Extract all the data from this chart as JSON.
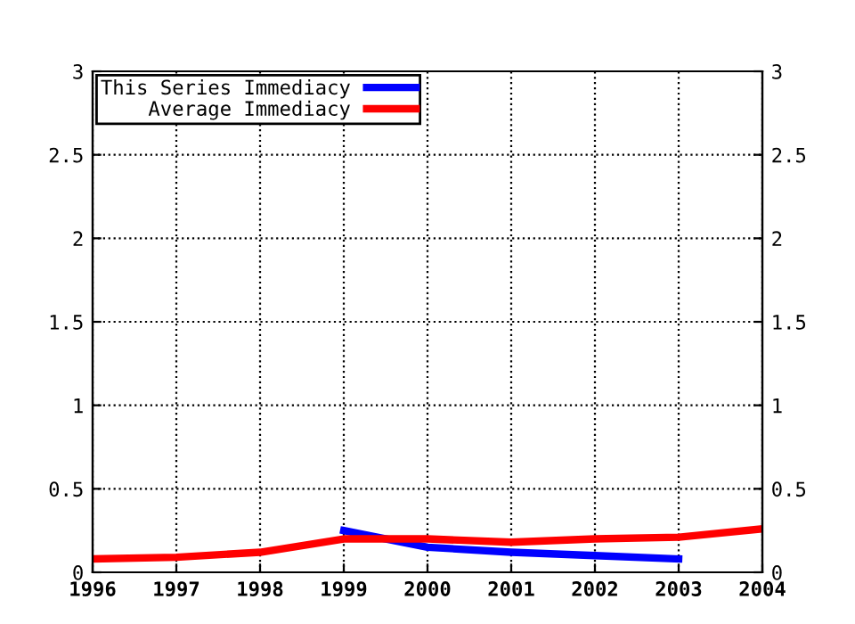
{
  "chart_data": {
    "type": "line",
    "x": [
      1996,
      1997,
      1998,
      1999,
      2000,
      2001,
      2002,
      2003,
      2004
    ],
    "series": [
      {
        "name": "This Series Immediacy",
        "color": "#0000ff",
        "x": [
          1999,
          2000,
          2001,
          2002,
          2003
        ],
        "values": [
          0.25,
          0.15,
          0.12,
          0.1,
          0.08
        ]
      },
      {
        "name": "Average Immediacy",
        "color": "#ff0000",
        "values": [
          0.08,
          0.09,
          0.12,
          0.2,
          0.2,
          0.18,
          0.2,
          0.21,
          0.26
        ]
      }
    ],
    "xlim": [
      1996,
      2004
    ],
    "xticks": [
      1996,
      1997,
      1998,
      1999,
      2000,
      2001,
      2002,
      2003,
      2004
    ],
    "ylim": [
      0,
      3
    ],
    "yticks": [
      0,
      0.5,
      1,
      1.5,
      2,
      2.5,
      3
    ],
    "y2lim": [
      0,
      3
    ],
    "y2ticks": [
      0,
      0.5,
      1,
      1.5,
      2,
      2.5,
      3
    ],
    "grid": true,
    "legend": "top left",
    "line_style": "solid",
    "marker": "none"
  }
}
